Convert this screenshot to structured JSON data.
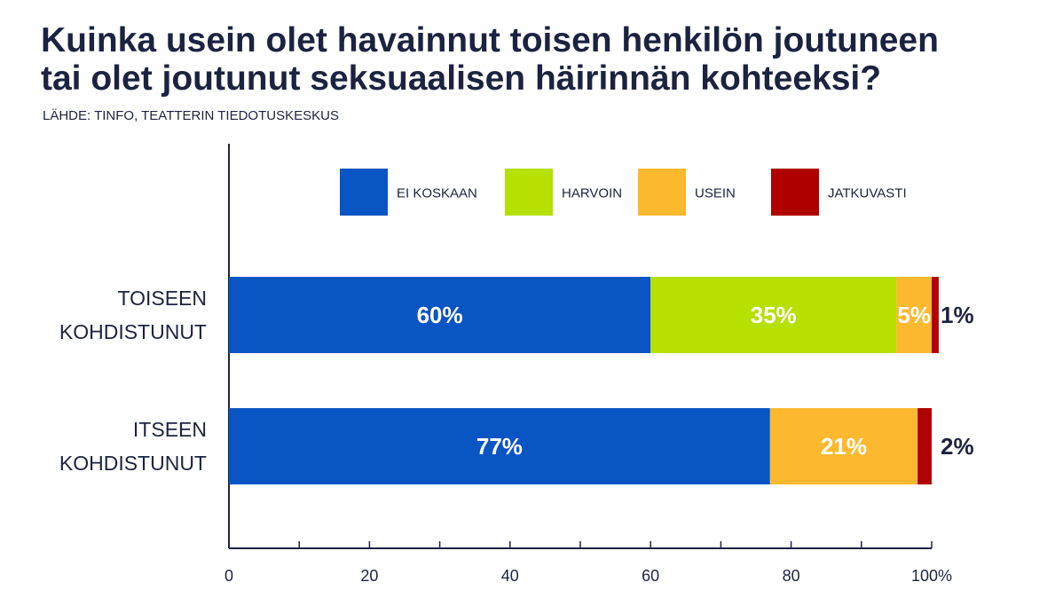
{
  "title_lines": [
    "Kuinka usein olet havainnut toisen henkilön joutuneen",
    "tai olet joutunut seksuaalisen häirinnän kohteeksi?"
  ],
  "subtitle": "LÄHDE: TINFO, TEATTERIN TIEDOTUSKESKUS",
  "chart_data": {
    "type": "bar",
    "orientation": "horizontal",
    "stacked": true,
    "categories": [
      [
        "TOISEEN",
        "KOHDISTUNUT"
      ],
      [
        "ITSEEN",
        "KOHDISTUNUT"
      ]
    ],
    "series": [
      {
        "name": "EI KOSKAAN",
        "color": "#0a55c4",
        "values": [
          60,
          77
        ],
        "labels": [
          "60%",
          "77%"
        ]
      },
      {
        "name": "HARVOIN",
        "color": "#b5e000",
        "values": [
          35,
          0
        ],
        "labels": [
          "35%",
          ""
        ]
      },
      {
        "name": "USEIN",
        "color": "#fcb930",
        "values": [
          5,
          21
        ],
        "labels": [
          "5%",
          "21%"
        ]
      },
      {
        "name": "JATKUVASTI",
        "color": "#b00000",
        "values": [
          1,
          2
        ],
        "labels": [
          "1%",
          "2%"
        ]
      }
    ],
    "xlim": [
      0,
      100
    ],
    "xticks": [
      0,
      20,
      40,
      60,
      80,
      100
    ],
    "xtick_labels": [
      "0",
      "20",
      "40",
      "60",
      "80",
      "100%"
    ],
    "legend_position": "top-center",
    "grid": false
  }
}
